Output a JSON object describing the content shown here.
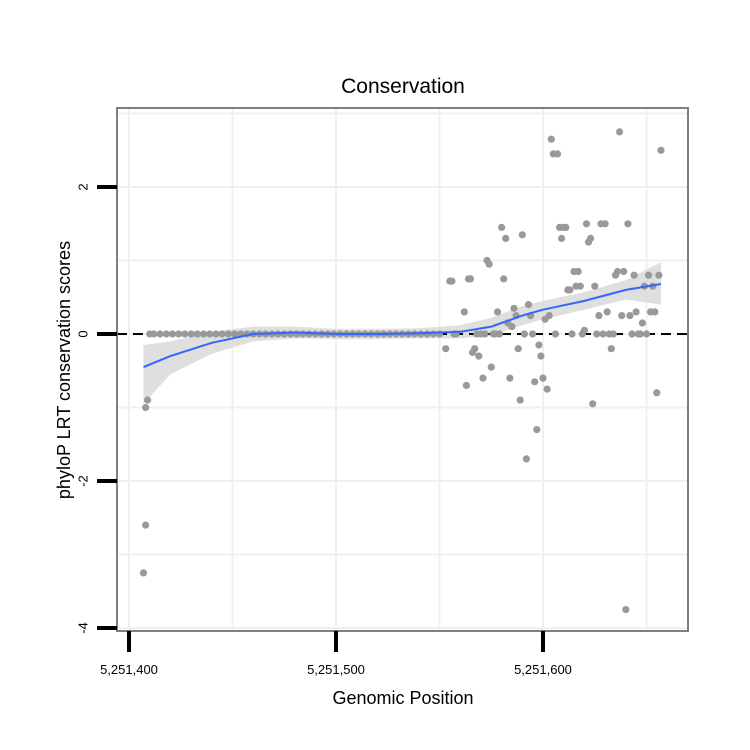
{
  "chart_data": {
    "type": "scatter",
    "title": "Conservation",
    "xlabel": "Genomic Position",
    "ylabel": "phyloP LRT conservation scores",
    "xlim": [
      5251405,
      5251677
    ],
    "ylim": [
      -4.0,
      3.0
    ],
    "x_ticks": [
      5251400,
      5251500,
      5251600
    ],
    "x_tick_labels": [
      "5,251,400",
      "5,251,500",
      "5,251,600"
    ],
    "y_ticks": [
      -4,
      -2,
      0,
      2
    ],
    "y_tick_labels": [
      "-4",
      "-2",
      "0",
      "2"
    ],
    "reference_line": {
      "y": 0,
      "style": "dashed"
    },
    "colors": {
      "points": "#999999",
      "smooth": "#3366FF",
      "ribbon": "#d9d9d9",
      "frame": "#7f7f7f",
      "grid": "#f0f0f0"
    },
    "series": [
      {
        "name": "phyloP score",
        "x": [
          5251407,
          5251408,
          5251408,
          5251409,
          5251410,
          5251412,
          5251415,
          5251418,
          5251421,
          5251424,
          5251427,
          5251430,
          5251433,
          5251436,
          5251439,
          5251442,
          5251445,
          5251448,
          5251451,
          5251454,
          5251457,
          5251460,
          5251463,
          5251466,
          5251469,
          5251472,
          5251475,
          5251478,
          5251481,
          5251484,
          5251487,
          5251490,
          5251493,
          5251496,
          5251499,
          5251502,
          5251505,
          5251508,
          5251511,
          5251514,
          5251517,
          5251520,
          5251523,
          5251526,
          5251529,
          5251532,
          5251535,
          5251538,
          5251541,
          5251544,
          5251547,
          5251550,
          5251553,
          5251555,
          5251556,
          5251557,
          5251558,
          5251562,
          5251563,
          5251564,
          5251565,
          5251566,
          5251567,
          5251568,
          5251569,
          5251570,
          5251571,
          5251572,
          5251573,
          5251574,
          5251575,
          5251576,
          5251577,
          5251578,
          5251579,
          5251580,
          5251581,
          5251582,
          5251583,
          5251584,
          5251585,
          5251586,
          5251587,
          5251588,
          5251589,
          5251590,
          5251591,
          5251592,
          5251593,
          5251594,
          5251595,
          5251596,
          5251597,
          5251598,
          5251599,
          5251600,
          5251601,
          5251602,
          5251603,
          5251604,
          5251605,
          5251606,
          5251607,
          5251608,
          5251609,
          5251610,
          5251611,
          5251612,
          5251613,
          5251614,
          5251615,
          5251616,
          5251617,
          5251618,
          5251619,
          5251620,
          5251621,
          5251622,
          5251623,
          5251624,
          5251625,
          5251626,
          5251627,
          5251628,
          5251629,
          5251630,
          5251631,
          5251632,
          5251633,
          5251634,
          5251635,
          5251636,
          5251637,
          5251638,
          5251639,
          5251640,
          5251641,
          5251642,
          5251643,
          5251644,
          5251645,
          5251646,
          5251647,
          5251648,
          5251649,
          5251650,
          5251651,
          5251652,
          5251653,
          5251654,
          5251655,
          5251656,
          5251657
        ],
        "y": [
          -3.25,
          -1.0,
          -2.6,
          -0.9,
          0.0,
          0.0,
          0.0,
          0.0,
          0.0,
          0.0,
          0.0,
          0.0,
          0.0,
          0.0,
          0.0,
          0.0,
          0.0,
          0.0,
          0.0,
          0.0,
          0.0,
          0.0,
          0.0,
          0.0,
          0.0,
          0.0,
          0.0,
          0.0,
          0.0,
          0.0,
          0.0,
          0.0,
          0.0,
          0.0,
          0.0,
          0.0,
          0.0,
          0.0,
          0.0,
          0.0,
          0.0,
          0.0,
          0.0,
          0.0,
          0.0,
          0.0,
          0.0,
          0.0,
          0.0,
          0.0,
          0.0,
          0.0,
          -0.2,
          0.72,
          0.72,
          0.0,
          0.0,
          0.3,
          -0.7,
          0.75,
          0.75,
          -0.25,
          -0.2,
          0.0,
          -0.3,
          0.0,
          -0.6,
          0.0,
          1.0,
          0.95,
          -0.45,
          0.0,
          0.0,
          0.3,
          0.0,
          1.45,
          0.75,
          1.3,
          0.15,
          -0.6,
          0.1,
          0.35,
          0.25,
          -0.2,
          -0.9,
          1.35,
          0.0,
          -1.7,
          0.4,
          0.25,
          0.0,
          -0.65,
          -1.3,
          -0.15,
          -0.3,
          -0.6,
          0.2,
          -0.75,
          0.25,
          2.65,
          2.45,
          0.0,
          2.45,
          1.45,
          1.3,
          1.45,
          1.45,
          0.6,
          0.6,
          0.0,
          0.85,
          0.65,
          0.85,
          0.65,
          0.0,
          0.05,
          1.5,
          1.25,
          1.3,
          -0.95,
          0.65,
          0.0,
          0.25,
          1.5,
          0.0,
          1.5,
          0.3,
          0.0,
          -0.2,
          0.0,
          0.8,
          0.85,
          2.75,
          0.25,
          0.85,
          -3.75,
          1.5,
          0.25,
          0.0,
          0.8,
          0.3,
          0.0,
          0.0,
          0.15,
          0.65,
          0.0,
          0.8,
          0.3,
          0.65,
          0.3,
          -0.8,
          0.8,
          2.5
        ]
      }
    ],
    "smooth": {
      "x": [
        5251407,
        5251420,
        5251440,
        5251460,
        5251480,
        5251500,
        5251520,
        5251540,
        5251560,
        5251575,
        5251590,
        5251600,
        5251620,
        5251640,
        5251657
      ],
      "y": [
        -0.45,
        -0.3,
        -0.12,
        0.0,
        0.02,
        0.0,
        0.0,
        0.01,
        0.03,
        0.1,
        0.25,
        0.33,
        0.45,
        0.6,
        0.68
      ],
      "upper": [
        -0.15,
        -0.1,
        0.03,
        0.1,
        0.1,
        0.07,
        0.07,
        0.08,
        0.12,
        0.22,
        0.38,
        0.45,
        0.57,
        0.73,
        0.98
      ],
      "lower": [
        -0.95,
        -0.55,
        -0.27,
        -0.1,
        -0.06,
        -0.07,
        -0.07,
        -0.06,
        -0.06,
        -0.02,
        0.12,
        0.2,
        0.33,
        0.47,
        0.4
      ]
    }
  }
}
